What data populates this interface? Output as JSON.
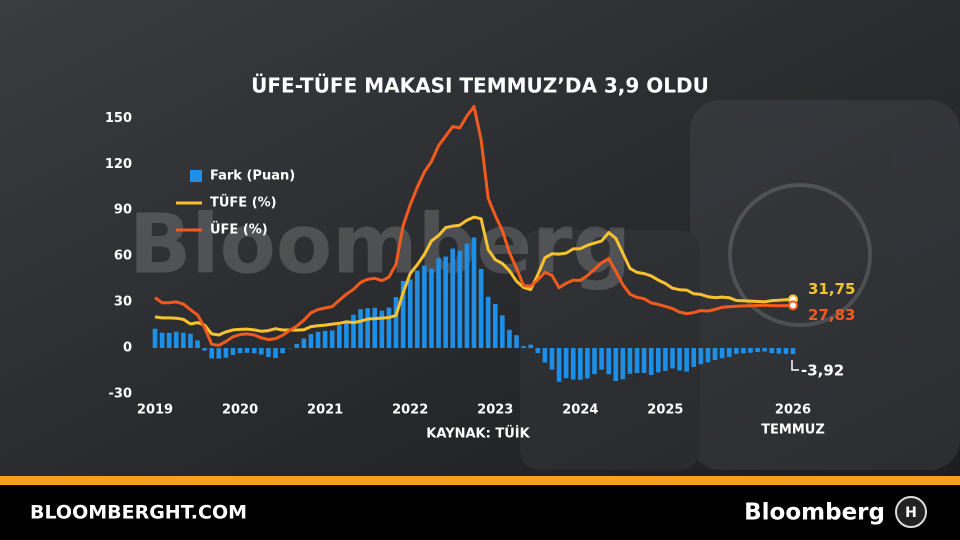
{
  "chart_data": {
    "type": "bar-line",
    "title": "ÜFE-TÜFE MAKASI TEMMUZ’DA 3,9 OLDU",
    "source": "KAYNAK: TÜİK",
    "watermark": "Bloomberg",
    "period_note": "TEMMUZ",
    "footer_left": "BLOOMBERGHT.COM",
    "footer_right": "Bloomberg",
    "categories": [
      "2019",
      null,
      null,
      null,
      null,
      null,
      null,
      null,
      null,
      null,
      null,
      null,
      "2020",
      null,
      null,
      null,
      null,
      null,
      null,
      null,
      null,
      null,
      null,
      null,
      "2021",
      null,
      null,
      null,
      null,
      null,
      null,
      null,
      null,
      null,
      null,
      null,
      "2022",
      null,
      null,
      null,
      null,
      null,
      null,
      null,
      null,
      null,
      null,
      null,
      "2023",
      null,
      null,
      null,
      null,
      null,
      null,
      null,
      null,
      null,
      null,
      null,
      "2024",
      null,
      null,
      null,
      null,
      null,
      null,
      null,
      null,
      null,
      null,
      null,
      "2025",
      null,
      null,
      null,
      null,
      null,
      null,
      null,
      null,
      null,
      null,
      null,
      null,
      null,
      null,
      null,
      null,
      null,
      "2026"
    ],
    "ylim": [
      -30,
      160
    ],
    "yticks": [
      150,
      120,
      90,
      60,
      30,
      0,
      -30
    ],
    "grid": false,
    "series": [
      {
        "name": "Fark (Puan)",
        "kind": "bar",
        "color": "#1e8fe6",
        "values": [
          12.6,
          10.0,
          9.9,
          10.6,
          10.0,
          9.3,
          5.0,
          -1.6,
          -6.8,
          -6.9,
          -6.3,
          -4.5,
          -3.3,
          -3.1,
          -3.4,
          -4.2,
          -5.9,
          -6.5,
          -3.4,
          -0.2,
          2.6,
          6.3,
          9.1,
          10.6,
          11.2,
          11.5,
          15.0,
          18.0,
          21.7,
          25.4,
          26.0,
          26.3,
          24.4,
          26.4,
          33.3,
          43.8,
          44.8,
          50.6,
          53.8,
          51.9,
          58.7,
          59.7,
          65.0,
          63.5,
          68.1,
          72.2,
          51.6,
          33.5,
          28.8,
          21.4,
          11.9,
          8.4,
          1.2,
          2.2,
          -3.3,
          -9.5,
          -14.1,
          -22.0,
          -19.7,
          -20.6,
          -20.7,
          -19.8,
          -17.0,
          -14.1,
          -17.1,
          -21.5,
          -20.4,
          -16.8,
          -16.3,
          -16.3,
          -17.6,
          -15.9,
          -14.9,
          -13.3,
          -14.6,
          -15.4,
          -12.3,
          -10.6,
          -9.3,
          -7.8,
          -6.7,
          -5.9,
          -3.8,
          -3.4,
          -3.1,
          -2.6,
          -2.3,
          -3.3,
          -3.6,
          -3.8,
          -3.92
        ],
        "value_labels": [
          null,
          null,
          null,
          null,
          null,
          null,
          null,
          null,
          null,
          null,
          null,
          null,
          null,
          null,
          null,
          null,
          null,
          null,
          null,
          null,
          null,
          null,
          null,
          null,
          null,
          null,
          null,
          null,
          null,
          null,
          null,
          null,
          null,
          null,
          null,
          null,
          null,
          null,
          null,
          null,
          null,
          null,
          null,
          null,
          null,
          null,
          null,
          null,
          null,
          null,
          null,
          null,
          null,
          null,
          null,
          null,
          null,
          null,
          null,
          null,
          null,
          null,
          null,
          null,
          null,
          null,
          null,
          null,
          null,
          null,
          null,
          null,
          null,
          null,
          null,
          null,
          null,
          null,
          null,
          null,
          null,
          null,
          null,
          null,
          null,
          null,
          null,
          null,
          null,
          null,
          "-3,92"
        ]
      },
      {
        "name": "TÜFE (%)",
        "kind": "line",
        "color": "#f6c230",
        "values": [
          20.35,
          19.67,
          19.71,
          19.5,
          18.71,
          15.72,
          16.65,
          15.01,
          9.26,
          8.55,
          10.56,
          11.84,
          12.15,
          12.37,
          11.86,
          10.94,
          11.39,
          12.62,
          11.76,
          11.77,
          11.75,
          11.89,
          14.03,
          14.6,
          14.97,
          15.61,
          16.19,
          17.14,
          16.59,
          17.53,
          18.95,
          19.25,
          19.58,
          19.89,
          21.31,
          36.08,
          48.69,
          54.44,
          61.14,
          69.97,
          73.5,
          78.62,
          79.6,
          80.21,
          83.45,
          85.51,
          84.39,
          64.27,
          57.68,
          55.18,
          50.51,
          43.68,
          39.59,
          38.21,
          47.83,
          58.94,
          61.53,
          61.36,
          61.98,
          64.77,
          64.86,
          67.07,
          68.5,
          69.8,
          75.45,
          71.6,
          61.78,
          51.97,
          49.38,
          48.58,
          47.09,
          44.38,
          42.12,
          39.05,
          38.1,
          37.86,
          35.41,
          35.05,
          33.52,
          32.95,
          33.29,
          32.87,
          31.07,
          30.89,
          30.65,
          30.4,
          30.2,
          31.0,
          31.2,
          31.5,
          31.75
        ],
        "value_labels": [
          null,
          null,
          null,
          null,
          null,
          null,
          null,
          null,
          null,
          null,
          null,
          null,
          null,
          null,
          null,
          null,
          null,
          null,
          null,
          null,
          null,
          null,
          null,
          null,
          null,
          null,
          null,
          null,
          null,
          null,
          null,
          null,
          null,
          null,
          null,
          null,
          null,
          null,
          null,
          null,
          null,
          null,
          null,
          null,
          null,
          null,
          null,
          null,
          null,
          null,
          null,
          null,
          null,
          null,
          null,
          null,
          null,
          null,
          null,
          null,
          null,
          null,
          null,
          null,
          null,
          null,
          null,
          null,
          null,
          null,
          null,
          null,
          null,
          null,
          null,
          null,
          null,
          null,
          null,
          null,
          null,
          null,
          null,
          null,
          null,
          null,
          null,
          null,
          null,
          null,
          "31,75"
        ]
      },
      {
        "name": "ÜFE (%)",
        "kind": "line",
        "color": "#f25a1e",
        "values": [
          32.93,
          29.64,
          29.64,
          30.12,
          28.71,
          25.04,
          21.66,
          13.45,
          2.45,
          1.7,
          4.26,
          7.36,
          8.84,
          9.26,
          8.5,
          6.71,
          5.53,
          6.17,
          8.33,
          11.53,
          14.33,
          18.2,
          23.11,
          25.15,
          26.16,
          27.09,
          31.2,
          35.17,
          38.33,
          42.89,
          44.92,
          45.52,
          43.96,
          46.31,
          54.62,
          79.89,
          93.53,
          105.01,
          114.97,
          121.82,
          132.16,
          138.31,
          144.61,
          143.75,
          151.5,
          157.69,
          136.02,
          97.72,
          86.46,
          76.61,
          62.43,
          52.11,
          40.76,
          40.42,
          44.5,
          49.41,
          47.44,
          39.39,
          42.25,
          44.22,
          44.2,
          47.29,
          51.47,
          55.66,
          58.4,
          50.09,
          41.37,
          35.17,
          33.09,
          32.24,
          29.47,
          28.52,
          27.2,
          25.76,
          23.5,
          22.5,
          23.13,
          24.45,
          24.19,
          25.16,
          26.59,
          27.0,
          27.3,
          27.5,
          27.6,
          27.8,
          27.9,
          27.7,
          27.6,
          27.7,
          27.83
        ],
        "value_labels": [
          null,
          null,
          null,
          null,
          null,
          null,
          null,
          null,
          null,
          null,
          null,
          null,
          null,
          null,
          null,
          null,
          null,
          null,
          null,
          null,
          null,
          null,
          null,
          null,
          null,
          null,
          null,
          null,
          null,
          null,
          null,
          null,
          null,
          null,
          null,
          null,
          null,
          null,
          null,
          null,
          null,
          null,
          null,
          null,
          null,
          null,
          null,
          null,
          null,
          null,
          null,
          null,
          null,
          null,
          null,
          null,
          null,
          null,
          null,
          null,
          null,
          null,
          null,
          null,
          null,
          null,
          null,
          null,
          null,
          null,
          null,
          null,
          null,
          null,
          null,
          null,
          null,
          null,
          null,
          null,
          null,
          null,
          null,
          null,
          null,
          null,
          null,
          null,
          null,
          null,
          "27,83"
        ]
      }
    ]
  }
}
